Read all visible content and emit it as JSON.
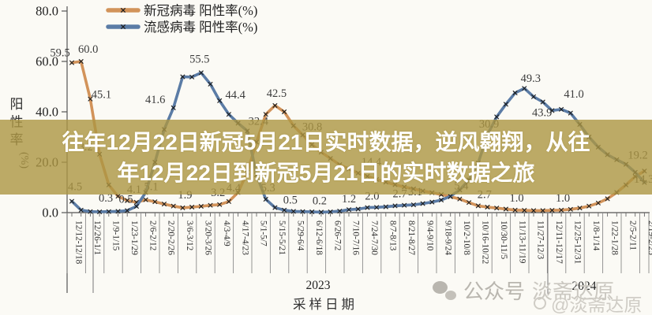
{
  "page": {
    "background": "#fbfaf5"
  },
  "overlay_title": {
    "line1": "往年12月22日新冠5月21日实时数据，逆风翱翔，从往",
    "line2": "年12月22日到新冠5月21日的实时数据之旅",
    "band_color": "#ac9642",
    "text_color": "#ffffff"
  },
  "watermark": {
    "wechat_icon": "wechat-bubbles",
    "account_label": "公众号",
    "account_name": "淡斋达原",
    "handle": "@淡斋达原"
  },
  "chart_data": {
    "type": "line",
    "title": "",
    "xlabel": "采样日期",
    "ylabel": "阳性率（%）",
    "ylabel_chars": [
      "阳",
      "性",
      "率",
      "(%)"
    ],
    "ylim": [
      0,
      80
    ],
    "y_ticks": [
      "0.0",
      "20.0",
      "40.0",
      "60.0",
      "80.0"
    ],
    "grid": "off",
    "legend_position": "top-left",
    "year_markers": [
      "2023",
      "2024"
    ],
    "x_tick_labels": [
      "12/12-12/18",
      "12/26-1/1",
      "1/9-1/15",
      "1/23-1/29",
      "2/6-2/12",
      "2/20-2/26",
      "3/6-3/12",
      "3/20-3/26",
      "4/3-4/9",
      "4/17-4/23",
      "5/1-5/7",
      "5/15-5/21",
      "5/29-6/4",
      "6/12-6/18",
      "6/26-7/2",
      "7/10-7/16",
      "7/24-7/30",
      "8/7-8/13",
      "8/21-8/27",
      "9/4-9/10",
      "9/18-9/24",
      "10/2-10/8",
      "10/16-10/22",
      "10/30-11/5",
      "11/13-11/19",
      "11/27-12/3",
      "12/11-12/17",
      "12/25-12/31",
      "1/8-1/14",
      "1/22-1/28",
      "2/5-2/11",
      "2/19-2/25"
    ],
    "series": [
      {
        "name": "新冠病毒 阳性率(%)",
        "color": "#d2935a",
        "marker": "x",
        "values": [
          59.5,
          60.0,
          45.1,
          23.2,
          11,
          6.5,
          4.8,
          4.1,
          5.1,
          4.3,
          3.4,
          2.6,
          1.9,
          2.2,
          2.5,
          2.9,
          3.2,
          4.4,
          8,
          16,
          28,
          39,
          42.5,
          40,
          34.5,
          30.8,
          27,
          24,
          21.5,
          19,
          17.3,
          15.7,
          14.4,
          13.2,
          12.1,
          11.1,
          10.2,
          9.4,
          8.6,
          7.9,
          7.2,
          6.3,
          5.4,
          4.0,
          2.7,
          2.2,
          1.8,
          1.4,
          1.0,
          0.9,
          0.8,
          0.8,
          0.9,
          1.0,
          1.3,
          1.8,
          2.6,
          3.8,
          5.5,
          8,
          11,
          14.3,
          16.5
        ]
      },
      {
        "name": "流感病毒 阳性率(%)",
        "color": "#5b7ca6",
        "marker": "x",
        "values": [
          4.5,
          1.0,
          0.4,
          0.3,
          0.4,
          0.5,
          0.8,
          2.5,
          8,
          20,
          33,
          41.6,
          53.9,
          53.8,
          55.5,
          51,
          44.4,
          39,
          35.5,
          32.4,
          15,
          5.3,
          2.0,
          1.0,
          0.5,
          0.4,
          0.3,
          0.2,
          0.3,
          0.6,
          1.2,
          1.4,
          2.0,
          2.1,
          2.3,
          2.7,
          2.9,
          3.1,
          3.6,
          4.2,
          5.0,
          6.5,
          9,
          13,
          19.7,
          30.9,
          38,
          43,
          47.5,
          49.3,
          46,
          43.9,
          40.5,
          41.0,
          39.5,
          35,
          30,
          26,
          23,
          21,
          19.2,
          16,
          12
        ]
      }
    ],
    "point_labels": [
      {
        "series": 0,
        "week": 1,
        "text": "59.5",
        "ox": -15,
        "oy": -8
      },
      {
        "series": 0,
        "week": 2,
        "text": "60.0",
        "ox": 9,
        "oy": -11
      },
      {
        "series": 0,
        "week": 3,
        "text": "45.1",
        "ox": 14,
        "oy": -1
      },
      {
        "series": 0,
        "week": 4,
        "text": "23.2",
        "ox": -21,
        "oy": -5
      },
      {
        "series": 0,
        "week": 8,
        "text": "4.1",
        "ox": -3,
        "oy": -12
      },
      {
        "series": 0,
        "week": 9,
        "text": "5.1",
        "ox": 7,
        "oy": -12
      },
      {
        "series": 0,
        "week": 13,
        "text": "1.9",
        "ox": 3,
        "oy": -12
      },
      {
        "series": 0,
        "week": 17,
        "text": "3.2",
        "ox": -2,
        "oy": -11
      },
      {
        "series": 0,
        "week": 18,
        "text": "4.4",
        "ox": 6,
        "oy": -13
      },
      {
        "series": 0,
        "week": 23,
        "text": "42.5",
        "ox": 2,
        "oy": -11
      },
      {
        "series": 0,
        "week": 26,
        "text": "30.8",
        "ox": 12,
        "oy": -6
      },
      {
        "series": 0,
        "week": 33,
        "text": "14.4",
        "ox": 5,
        "oy": -14
      },
      {
        "series": 0,
        "week": 43,
        "text": "5.4",
        "ox": 2,
        "oy": -12
      },
      {
        "series": 0,
        "week": 45,
        "text": "2.7",
        "ox": 8,
        "oy": -10
      },
      {
        "series": 0,
        "week": 49,
        "text": "1.0",
        "ox": 2,
        "oy": -11
      },
      {
        "series": 0,
        "week": 54,
        "text": "1.0",
        "ox": 2,
        "oy": -11
      },
      {
        "series": 0,
        "week": 62,
        "text": "14.3",
        "ox": 11,
        "oy": 8
      },
      {
        "series": 1,
        "week": 1,
        "text": "4.5",
        "ox": 4,
        "oy": -14
      },
      {
        "series": 1,
        "week": 4,
        "text": "0.3",
        "ox": 8,
        "oy": -13
      },
      {
        "series": 1,
        "week": 6,
        "text": "0.5",
        "ox": 10,
        "oy": -11
      },
      {
        "series": 1,
        "week": 12,
        "text": "41.6",
        "ox": -23,
        "oy": -6
      },
      {
        "series": 1,
        "week": 15,
        "text": "55.5",
        "ox": -2,
        "oy": -13
      },
      {
        "series": 1,
        "week": 17,
        "text": "44.4",
        "ox": 20,
        "oy": -3
      },
      {
        "series": 1,
        "week": 20,
        "text": "32.4",
        "ox": 14,
        "oy": -8
      },
      {
        "series": 1,
        "week": 22,
        "text": "5.3",
        "ox": 3,
        "oy": -10
      },
      {
        "series": 1,
        "week": 25,
        "text": "0.5",
        "ox": -4,
        "oy": -10
      },
      {
        "series": 1,
        "week": 28,
        "text": "0.2",
        "ox": -2,
        "oy": -10
      },
      {
        "series": 1,
        "week": 31,
        "text": "1.2",
        "ox": 0,
        "oy": -9
      },
      {
        "series": 1,
        "week": 33,
        "text": "2.0",
        "ox": 6,
        "oy": -10
      },
      {
        "series": 1,
        "week": 36,
        "text": "2.7",
        "ox": 6,
        "oy": -11
      },
      {
        "series": 1,
        "week": 38,
        "text": "3.1",
        "ox": 2,
        "oy": -12
      },
      {
        "series": 1,
        "week": 46,
        "text": "30.9",
        "ox": 2,
        "oy": -9
      },
      {
        "series": 1,
        "week": 50,
        "text": "49.3",
        "ox": 8,
        "oy": -8
      },
      {
        "series": 1,
        "week": 52,
        "text": "43.9",
        "ox": -1,
        "oy": 18
      },
      {
        "series": 1,
        "week": 54,
        "text": "41.0",
        "ox": 16,
        "oy": -15
      },
      {
        "series": 1,
        "week": 61,
        "text": "19.2",
        "ox": 15,
        "oy": -7
      }
    ]
  }
}
